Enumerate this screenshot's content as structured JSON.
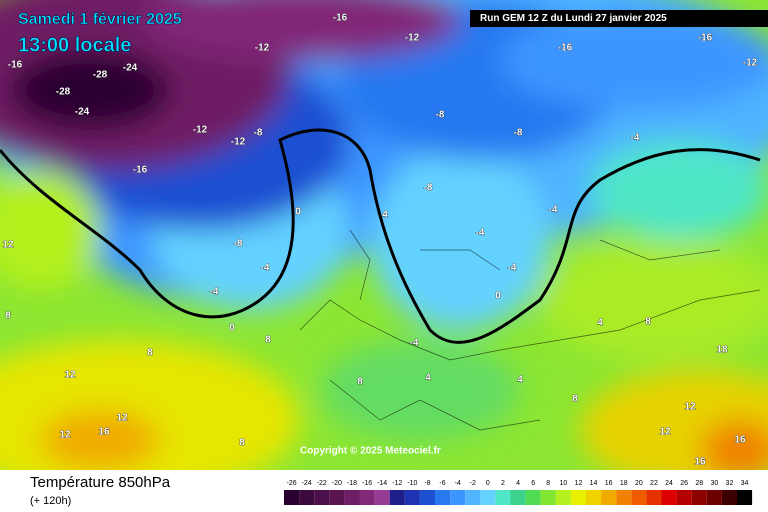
{
  "header": {
    "date": "Samedi 1 février 2025",
    "time": "13:00 locale",
    "run": "Run GEM 12 Z du Lundi 27 janvier 2025"
  },
  "footer": {
    "title": "Température 850hPa",
    "subtitle": "(+ 120h)",
    "copyright": "Copyright © 2025 Meteociel.fr"
  },
  "legend": {
    "ticks": [
      -26,
      -24,
      -22,
      -20,
      -18,
      -16,
      -14,
      -12,
      -10,
      -8,
      -6,
      -4,
      -2,
      0,
      2,
      4,
      6,
      8,
      10,
      12,
      14,
      16,
      18,
      20,
      22,
      24,
      26,
      28,
      30,
      32,
      34
    ],
    "colors": [
      "#2a0030",
      "#3c0a3c",
      "#4b0f4b",
      "#5a1450",
      "#6e1e64",
      "#822878",
      "#963c96",
      "#1e1e8c",
      "#1e32b4",
      "#1e50d2",
      "#2878f0",
      "#3c96ff",
      "#50b4ff",
      "#64d2ff",
      "#50e6c8",
      "#3cd28c",
      "#50dc50",
      "#82e632",
      "#b4f01e",
      "#e6f000",
      "#f0d200",
      "#f0aa00",
      "#f08200",
      "#f05a00",
      "#e63200",
      "#dc0000",
      "#b40000",
      "#8c0000",
      "#6e0000",
      "#3c0000",
      "#000000"
    ]
  },
  "map_labels": [
    -16,
    -28,
    -24,
    -28,
    -24,
    -16,
    -12,
    -12,
    -8,
    -12,
    -16,
    -12,
    -16,
    -16,
    -12,
    -8,
    -8,
    -8,
    -4,
    -4,
    -8,
    -4,
    -4,
    0,
    0,
    4,
    -4,
    -4,
    0,
    -4,
    4,
    8,
    8,
    8,
    12,
    16,
    12,
    12,
    8,
    4,
    8,
    12,
    16,
    18,
    8,
    4,
    16,
    12,
    12,
    8
  ]
}
